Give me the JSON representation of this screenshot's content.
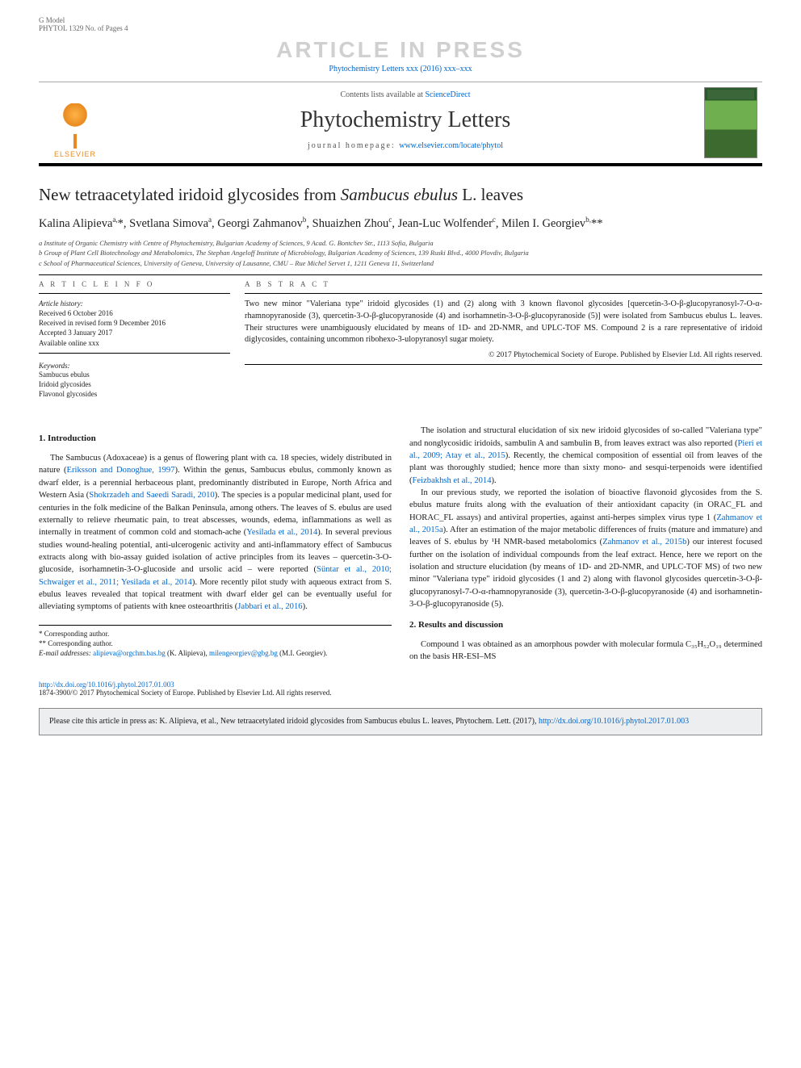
{
  "header": {
    "gmodel": "G Model",
    "code": "PHYTOL 1329 No. of Pages 4",
    "watermark": "ARTICLE IN PRESS",
    "journal_ref": "Phytochemistry Letters xxx (2016) xxx–xxx"
  },
  "masthead": {
    "elsevier": "ELSEVIER",
    "contents_prefix": "Contents lists available at ",
    "contents_link": "ScienceDirect",
    "journal_title": "Phytochemistry Letters",
    "homepage_label": "journal homepage: ",
    "homepage_url": "www.elsevier.com/locate/phytol"
  },
  "article": {
    "title": "New tetraacetylated iridoid glycosides from Sambucus ebulus L. leaves",
    "authors_html": "Kalina Alipieva<sup>a,</sup>*, Svetlana Simova<sup>a</sup>, Georgi Zahmanov<sup>b</sup>, Shuaizhen Zhou<sup>c</sup>, Jean-Luc Wolfender<sup>c</sup>, Milen I. Georgiev<sup>b,</sup>**",
    "affiliations": [
      "a Institute of Organic Chemistry with Centre of Phytochemistry, Bulgarian Academy of Sciences, 9 Acad. G. Bontchev Str., 1113 Sofia, Bulgaria",
      "b Group of Plant Cell Biotechnology and Metabolomics, The Stephan Angeloff Institute of Microbiology, Bulgarian Academy of Sciences, 139 Ruski Blvd., 4000 Plovdiv, Bulgaria",
      "c School of Pharmaceutical Sciences, University of Geneva, University of Lausanne, CMU – Rue Michel Servet 1, 1211 Geneva 11, Switzerland"
    ]
  },
  "info": {
    "head": "A R T I C L E   I N F O",
    "history_label": "Article history:",
    "history": [
      "Received 6 October 2016",
      "Received in revised form 9 December 2016",
      "Accepted 3 January 2017",
      "Available online xxx"
    ],
    "keywords_label": "Keywords:",
    "keywords": [
      "Sambucus ebulus",
      "Iridoid glycosides",
      "Flavonol glycosides"
    ]
  },
  "abstract": {
    "head": "A B S T R A C T",
    "text": "Two new minor \"Valeriana type\" iridoid glycosides (1) and (2) along with 3 known flavonol glycosides [quercetin-3-O-β-glucopyranosyl-7-O-α-rhamnopyranoside (3), quercetin-3-O-β-glucopyranoside (4) and isorhamnetin-3-O-β-glucopyranoside (5)] were isolated from Sambucus ebulus L. leaves. Their structures were unambiguously elucidated by means of 1D- and 2D-NMR, and UPLC-TOF MS. Compound 2 is a rare representative of iridoid diglycosides, containing uncommon ribohexo-3-ulopyranosyl sugar moiety.",
    "copyright": "© 2017 Phytochemical Society of Europe. Published by Elsevier Ltd. All rights reserved."
  },
  "body": {
    "s1_head": "1. Introduction",
    "p1a": "The Sambucus (Adoxaceae) is a genus of flowering plant with ca. 18 species, widely distributed in nature (",
    "p1_c1": "Eriksson and Donoghue, 1997",
    "p1b": "). Within the genus, Sambucus ebulus, commonly known as dwarf elder, is a perennial herbaceous plant, predominantly distributed in Europe, North Africa and Western Asia (",
    "p1_c2": "Shokrzadeh and Saeedi Saradi, 2010",
    "p1c": "). The species is a popular medicinal plant, used for centuries in the folk medicine of the Balkan Peninsula, among others. The leaves of S. ebulus are used externally to relieve rheumatic pain, to treat abscesses, wounds, edema, inflammations as well as internally in treatment of common cold and stomach-ache (",
    "p1_c3": "Yesilada et al., 2014",
    "p1d": "). In several previous studies wound-healing potential, anti-ulcerogenic activity and anti-inflammatory effect of Sambucus extracts along with bio-assay guided isolation of active principles from its leaves – quercetin-3-O-glucoside, isorhamnetin-3-O-glucoside and ursolic acid – were reported (",
    "p1_c4": "Süntar et al., 2010; Schwaiger et al., 2011; Yesilada et al., 2014",
    "p1e": "). More recently pilot study with aqueous extract from S. ebulus leaves revealed that topical treatment with dwarf elder gel can be eventually useful for alleviating symptoms of patients with knee osteoarthritis (",
    "p1_c5": "Jabbari et al., 2016",
    "p1f": ").",
    "p2a": "The isolation and structural elucidation of six new iridoid glycosides of so-called \"Valeriana type\" and nonglycosidic iridoids, sambulin A and sambulin B, from leaves extract was also reported (",
    "p2_c1": "Pieri et al., 2009; Atay et al., 2015",
    "p2b": "). Recently, the chemical composition of essential oil from leaves of the plant was thoroughly studied; hence more than sixty mono- and sesqui-terpenoids were identified (",
    "p2_c2": "Feizbakhsh et al., 2014",
    "p2c": ").",
    "p3a": "In our previous study, we reported the isolation of bioactive flavonoid glycosides from the S. ebulus mature fruits along with the evaluation of their antioxidant capacity (in ORAC_FL and HORAC_FL assays) and antiviral properties, against anti-herpes simplex virus type 1 (",
    "p3_c1": "Zahmanov et al., 2015a",
    "p3b": "). After an estimation of the major metabolic differences of fruits (mature and immature) and leaves of S. ebulus by ¹H NMR-based metabolomics (",
    "p3_c2": "Zahmanov et al., 2015b",
    "p3c": ") our interest focused further on the isolation of individual compounds from the leaf extract. Hence, here we report on the isolation and structure elucidation (by means of 1D- and 2D-NMR, and UPLC-TOF MS) of two new minor \"Valeriana type\" iridoid glycosides (1 and 2) along with flavonol glycosides quercetin-3-O-β-glucopyranosyl-7-O-α-rhamnopyranoside (3), quercetin-3-O-β-glucopyranoside (4) and isorhamnetin-3-O-β-glucopyranoside (5).",
    "s2_head": "2. Results and discussion",
    "p4": "Compound 1 was obtained as an amorphous powder with molecular formula C₃₅H₅₂O₁₉ determined on the basis HR-ESI–MS"
  },
  "footnotes": {
    "c1": "* Corresponding author.",
    "c2": "** Corresponding author.",
    "email_label": "E-mail addresses: ",
    "email1": "alipieva@orgchm.bas.bg",
    "email1_who": " (K. Alipieva), ",
    "email2": "milengeorgiev@gbg.bg",
    "email2_who": " (M.I. Georgiev)."
  },
  "doi": {
    "url": "http://dx.doi.org/10.1016/j.phytol.2017.01.003",
    "line2": "1874-3900/© 2017 Phytochemical Society of Europe. Published by Elsevier Ltd. All rights reserved."
  },
  "citebox": {
    "text_a": "Please cite this article in press as: K. Alipieva, et al., New tetraacetylated iridoid glycosides from Sambucus ebulus L. leaves, Phytochem. Lett. (2017), ",
    "url": "http://dx.doi.org/10.1016/j.phytol.2017.01.003"
  },
  "colors": {
    "link": "#0066cc",
    "watermark": "#d0d0d0",
    "elsevier": "#e88a1f",
    "citebox_bg": "#eceef0"
  }
}
